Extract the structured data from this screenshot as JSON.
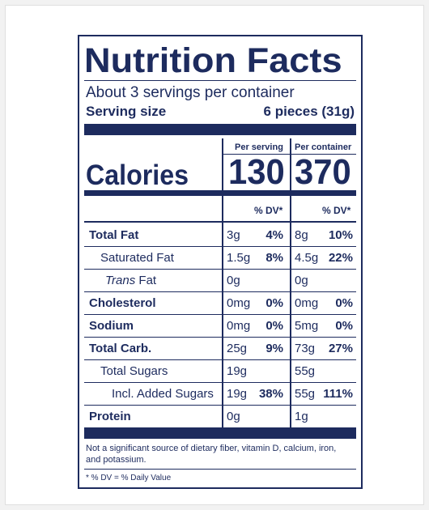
{
  "title": "Nutrition Facts",
  "servings_per_container": "About 3 servings per container",
  "serving_size": {
    "label": "Serving size",
    "value": "6 pieces (31g)"
  },
  "columns": {
    "per_serving": "Per serving",
    "per_container": "Per container"
  },
  "calories": {
    "label": "Calories",
    "per_serving": "130",
    "per_container": "370"
  },
  "dv_header": "% DV*",
  "rows": [
    {
      "name": "Total Fat",
      "bold": true,
      "serving_amount": "3g",
      "serving_dv": "4%",
      "container_amount": "8g",
      "container_dv": "10%"
    },
    {
      "name": "Saturated Fat",
      "bold": false,
      "serving_amount": "1.5g",
      "serving_dv": "8%",
      "container_amount": "4.5g",
      "container_dv": "22%"
    },
    {
      "name_italic": "Trans",
      "name_rest": " Fat",
      "bold": false,
      "serving_amount": "0g",
      "serving_dv": "",
      "container_amount": "0g",
      "container_dv": ""
    },
    {
      "name": "Cholesterol",
      "bold": true,
      "serving_amount": "0mg",
      "serving_dv": "0%",
      "container_amount": "0mg",
      "container_dv": "0%"
    },
    {
      "name": "Sodium",
      "bold": true,
      "serving_amount": "0mg",
      "serving_dv": "0%",
      "container_amount": "5mg",
      "container_dv": "0%"
    },
    {
      "name": "Total Carb.",
      "bold": true,
      "serving_amount": "25g",
      "serving_dv": "9%",
      "container_amount": "73g",
      "container_dv": "27%"
    },
    {
      "name": "Total Sugars",
      "bold": false,
      "serving_amount": "19g",
      "serving_dv": "",
      "container_amount": "55g",
      "container_dv": ""
    },
    {
      "name": "Incl. Added Sugars",
      "bold": false,
      "serving_amount": "19g",
      "serving_dv": "38%",
      "container_amount": "55g",
      "container_dv": "111%"
    },
    {
      "name": "Protein",
      "bold": true,
      "serving_amount": "0g",
      "serving_dv": "",
      "container_amount": "1g",
      "container_dv": ""
    }
  ],
  "footnote": "Not a significant source of dietary fiber, vitamin D, calcium, iron, and potassium.",
  "dv_note": "* % DV = % Daily Value",
  "colors": {
    "ink": "#1d2b5e",
    "background": "#ffffff",
    "page": "#f2f2f2"
  }
}
